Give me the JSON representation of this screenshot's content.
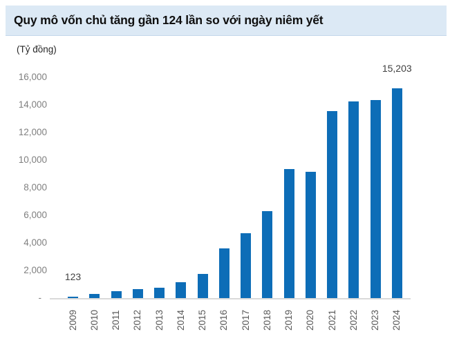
{
  "header": {
    "title": "Quy mô vốn chủ tăng gần 124 lần so với ngày niêm yết"
  },
  "chart_data": {
    "type": "bar",
    "title": "Quy mô vốn chủ tăng gần 124 lần so với ngày niêm yết",
    "ylabel": "(Tỷ đồng)",
    "xlabel": "",
    "categories": [
      "2009",
      "2010",
      "2011",
      "2012",
      "2013",
      "2014",
      "2015",
      "2016",
      "2017",
      "2018",
      "2019",
      "2020",
      "2021",
      "2022",
      "2023",
      "2024"
    ],
    "values": [
      123,
      300,
      480,
      630,
      740,
      1150,
      1750,
      3600,
      4700,
      6300,
      9350,
      9150,
      13550,
      14250,
      14350,
      15203
    ],
    "ylim": [
      0,
      16000
    ],
    "ytick_step": 2000,
    "ytick_labels_top_down": [
      "16,000",
      "14,000",
      "12,000",
      "10,000",
      "8,000",
      "6,000",
      "4,000",
      "2,000",
      "-"
    ],
    "grid": false,
    "legend": false,
    "bar_color": "#0d6db7",
    "data_labels": [
      {
        "index": 0,
        "text": "123"
      },
      {
        "index": 15,
        "text": "15,203"
      }
    ]
  },
  "colors": {
    "header_bg": "#dce9f5",
    "header_border": "#c2d6ea",
    "bar": "#0d6db7",
    "axis_line": "#d9d9d9",
    "ytick_text": "#7f7f7f",
    "xtick_text": "#595959",
    "data_label_text": "#404040",
    "title_text": "#0f0f0f"
  }
}
